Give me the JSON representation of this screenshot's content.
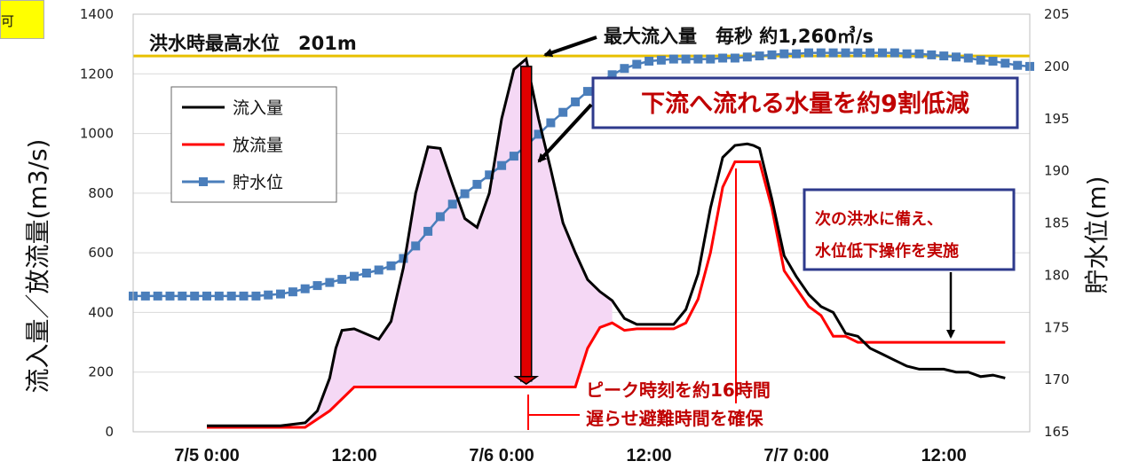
{
  "chart_data": {
    "type": "line",
    "x_ticks": [
      "7/5  0:00",
      "12:00",
      "7/6  0:00",
      "12:00",
      "7/7  0:00",
      "12:00"
    ],
    "y_left": {
      "label": "流入量／放流量(m3/s)",
      "ticks": [
        0,
        200,
        400,
        600,
        800,
        1000,
        1200,
        1400
      ],
      "range": [
        0,
        1400
      ]
    },
    "y_right": {
      "label": "貯水位(m)",
      "ticks": [
        165,
        170,
        175,
        180,
        185,
        190,
        195,
        200,
        205
      ],
      "range": [
        165,
        205
      ]
    },
    "x_range_hours": [
      -6,
      67
    ],
    "series": [
      {
        "name": "流入量",
        "color": "#000000",
        "axis": "left",
        "x": [
          0,
          6,
          8,
          9,
          10,
          10.5,
          11,
          12,
          14,
          15,
          16,
          17,
          18,
          19,
          20,
          21,
          22,
          23,
          24,
          25,
          26,
          27,
          28,
          29,
          30,
          31,
          32,
          33,
          34,
          35,
          36,
          37,
          38,
          39,
          40,
          41,
          42,
          43,
          44,
          44.5,
          45,
          46,
          47,
          48,
          49,
          50,
          51,
          52,
          53,
          54,
          55,
          56,
          57,
          58,
          59,
          60,
          61,
          62,
          63,
          64,
          65
        ],
        "values": [
          20,
          20,
          30,
          70,
          180,
          280,
          340,
          345,
          310,
          370,
          550,
          800,
          955,
          950,
          830,
          715,
          685,
          800,
          1050,
          1215,
          1250,
          1050,
          880,
          700,
          600,
          510,
          470,
          440,
          380,
          360,
          360,
          360,
          360,
          410,
          530,
          750,
          920,
          960,
          965,
          960,
          950,
          780,
          590,
          520,
          460,
          420,
          400,
          330,
          320,
          280,
          260,
          240,
          220,
          210,
          210,
          210,
          200,
          200,
          185,
          190,
          180
        ]
      },
      {
        "name": "放流量",
        "color": "#ff0000",
        "axis": "left",
        "x": [
          0,
          8,
          10,
          11,
          12,
          16,
          20,
          24,
          28,
          29,
          30,
          31,
          32,
          33,
          34,
          35,
          36,
          37,
          38,
          39,
          40,
          41,
          42,
          43,
          44,
          45,
          46,
          47,
          48,
          49,
          50,
          51,
          52,
          53,
          54,
          55,
          65
        ],
        "values": [
          15,
          15,
          70,
          110,
          150,
          150,
          150,
          150,
          150,
          150,
          150,
          280,
          350,
          365,
          340,
          345,
          345,
          345,
          345,
          365,
          445,
          600,
          820,
          905,
          905,
          905,
          750,
          540,
          480,
          420,
          390,
          320,
          320,
          300,
          300,
          300,
          300
        ]
      },
      {
        "name": "貯水位",
        "color": "#4a7ebb",
        "axis": "right",
        "x": [
          -6,
          -5,
          -4,
          -3,
          -2,
          -1,
          0,
          1,
          2,
          3,
          4,
          5,
          6,
          7,
          8,
          9,
          10,
          11,
          12,
          13,
          14,
          15,
          16,
          17,
          18,
          19,
          20,
          21,
          22,
          23,
          24,
          25,
          26,
          27,
          28,
          29,
          30,
          31,
          32,
          33,
          34,
          35,
          36,
          37,
          38,
          39,
          40,
          41,
          42,
          43,
          44,
          45,
          46,
          47,
          48,
          49,
          50,
          51,
          52,
          53,
          54,
          55,
          56,
          57,
          58,
          59,
          60,
          61,
          62,
          63,
          64,
          65,
          66,
          67
        ],
        "values": [
          178,
          178,
          178,
          178,
          178,
          178,
          178,
          178,
          178,
          178,
          178,
          178.1,
          178.2,
          178.4,
          178.7,
          179,
          179.3,
          179.6,
          179.9,
          180.2,
          180.5,
          180.9,
          181.6,
          182.8,
          184.2,
          185.6,
          186.8,
          187.8,
          188.7,
          189.6,
          190.5,
          191.4,
          192.4,
          193.5,
          194.6,
          195.6,
          196.6,
          197.6,
          198.5,
          199.2,
          199.8,
          200.2,
          200.5,
          200.6,
          200.7,
          200.7,
          200.7,
          200.7,
          200.8,
          200.8,
          200.9,
          201,
          201.1,
          201.2,
          201.2,
          201.3,
          201.3,
          201.3,
          201.3,
          201.3,
          201.3,
          201.3,
          201.3,
          201.2,
          201.2,
          201.1,
          201,
          200.9,
          200.8,
          200.6,
          200.5,
          200.3,
          200.1,
          200
        ]
      }
    ],
    "reference_line": {
      "label": "洪水時最高水位　201m",
      "axis": "right",
      "value": 201,
      "color": "#e8c000"
    },
    "legend": {
      "position": "top-left",
      "entries": [
        "流入量",
        "放流量",
        "貯水位"
      ]
    },
    "grid": true
  },
  "annotations": {
    "peak_inflow": "最大流入量　毎秒 約1,260㎥/s",
    "reduction_box": "下流へ流れる水量を約9割低減",
    "next_flood_line1": "次の洪水に備え、",
    "next_flood_line2": "水位低下操作を実施",
    "peak_delay_line1": "ピーク時刻を約16時間",
    "peak_delay_line2": "遅らせ避難時間を確保"
  },
  "corner_tag": {
    "text": "可",
    "color": "#ffff00"
  }
}
